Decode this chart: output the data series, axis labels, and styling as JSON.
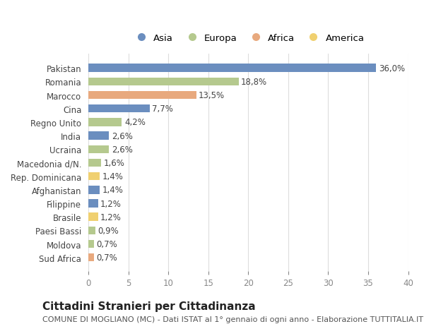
{
  "categories": [
    "Pakistan",
    "Romania",
    "Marocco",
    "Cina",
    "Regno Unito",
    "India",
    "Ucraina",
    "Macedonia d/N.",
    "Rep. Dominicana",
    "Afghanistan",
    "Filippine",
    "Brasile",
    "Paesi Bassi",
    "Moldova",
    "Sud Africa"
  ],
  "values": [
    36.0,
    18.8,
    13.5,
    7.7,
    4.2,
    2.6,
    2.6,
    1.6,
    1.4,
    1.4,
    1.2,
    1.2,
    0.9,
    0.7,
    0.7
  ],
  "labels": [
    "36,0%",
    "18,8%",
    "13,5%",
    "7,7%",
    "4,2%",
    "2,6%",
    "2,6%",
    "1,6%",
    "1,4%",
    "1,4%",
    "1,2%",
    "1,2%",
    "0,9%",
    "0,7%",
    "0,7%"
  ],
  "colors": [
    "#6b8ebf",
    "#b5c98e",
    "#e8a97e",
    "#6b8ebf",
    "#b5c98e",
    "#6b8ebf",
    "#b5c98e",
    "#b5c98e",
    "#f0d070",
    "#6b8ebf",
    "#6b8ebf",
    "#f0d070",
    "#b5c98e",
    "#b5c98e",
    "#e8a97e"
  ],
  "legend_labels": [
    "Asia",
    "Europa",
    "Africa",
    "America"
  ],
  "legend_colors": [
    "#6b8ebf",
    "#b5c98e",
    "#e8a97e",
    "#f0d070"
  ],
  "title": "Cittadini Stranieri per Cittadinanza",
  "subtitle": "COMUNE DI MOGLIANO (MC) - Dati ISTAT al 1° gennaio di ogni anno - Elaborazione TUTTITALIA.IT",
  "xlim": [
    0,
    40
  ],
  "xticks": [
    0,
    5,
    10,
    15,
    20,
    25,
    30,
    35,
    40
  ],
  "bg_color": "#ffffff",
  "grid_color": "#dddddd",
  "bar_height": 0.6,
  "label_fontsize": 8.5,
  "tick_fontsize": 8.5,
  "title_fontsize": 11,
  "subtitle_fontsize": 8
}
